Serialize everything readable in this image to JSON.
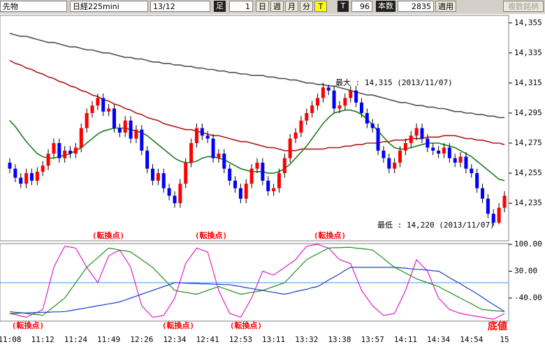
{
  "toolbar": {
    "market": "先物",
    "symbol": "日経225mini",
    "contract": "13/12",
    "bar_label": "足",
    "bar_size": "1",
    "day": "日",
    "week": "週",
    "month": "月",
    "minute": "分",
    "tick": "T",
    "tick2": "T",
    "tick_count": "96",
    "count_label": "本数",
    "count": "2835",
    "apply": "適用",
    "multi": "複数銘柄"
  },
  "chart_data": [
    {
      "type": "candlestick",
      "up_color": "#ff0000",
      "down_color": "#0000ff",
      "ylim": [
        14210,
        14360
      ],
      "yticks": [
        {
          "value": 14235,
          "label": "14,235"
        },
        {
          "value": 14255,
          "label": "14,255"
        },
        {
          "value": 14275,
          "label": "14,275"
        },
        {
          "value": 14295,
          "label": "14,295"
        },
        {
          "value": 14315,
          "label": "14,315"
        },
        {
          "value": 14335,
          "label": "14,335"
        },
        {
          "value": 14355,
          "label": "14,355"
        }
      ],
      "categories": [
        "11:08",
        null,
        null,
        null,
        null,
        null,
        "11:12",
        null,
        null,
        null,
        null,
        null,
        "11:24",
        null,
        null,
        null,
        null,
        null,
        "11:49",
        null,
        null,
        null,
        null,
        null,
        "12:26",
        null,
        null,
        null,
        null,
        null,
        "12:34",
        null,
        null,
        null,
        null,
        null,
        "12:41",
        null,
        null,
        null,
        null,
        null,
        "12:53",
        null,
        null,
        null,
        null,
        null,
        "13:11",
        null,
        null,
        null,
        null,
        null,
        "13:32",
        null,
        null,
        null,
        null,
        null,
        "13:38",
        null,
        null,
        null,
        null,
        null,
        "13:57",
        null,
        null,
        null,
        null,
        null,
        "14:11",
        null,
        null,
        null,
        null,
        null,
        "14:34",
        null,
        null,
        null,
        null,
        null,
        "14:54",
        null,
        null,
        null,
        null,
        null,
        "15"
      ],
      "open": [
        14262,
        14258,
        14252,
        14248,
        14255,
        14250,
        14256,
        14260,
        14268,
        14275,
        14265,
        14270,
        14268,
        14272,
        14285,
        14295,
        14300,
        14305,
        14296,
        14298,
        14285,
        14282,
        14290,
        14278,
        14284,
        14270,
        14258,
        14250,
        14255,
        14245,
        14240,
        14235,
        14248,
        14262,
        14275,
        14285,
        14280,
        14278,
        14265,
        14268,
        14258,
        14250,
        14245,
        14238,
        14248,
        14258,
        14262,
        14250,
        14243,
        14245,
        14255,
        14265,
        14278,
        14282,
        14290,
        14295,
        14300,
        14305,
        14312,
        14310,
        14298,
        14300,
        14305,
        14310,
        14302,
        14295,
        14288,
        14285,
        14270,
        14265,
        14258,
        14262,
        14270,
        14275,
        14280,
        14285,
        14278,
        14272,
        14270,
        14268,
        14272,
        14265,
        14262,
        14266,
        14258,
        14255,
        14245,
        14238,
        14228,
        14222,
        14232
      ],
      "high": [
        14265,
        14261,
        14255,
        14258,
        14258,
        14259,
        14263,
        14271,
        14278,
        14278,
        14273,
        14273,
        14275,
        14288,
        14298,
        14303,
        14308,
        14308,
        14301,
        14301,
        14288,
        14293,
        14293,
        14287,
        14287,
        14273,
        14261,
        14258,
        14258,
        14248,
        14243,
        14251,
        14265,
        14278,
        14288,
        14288,
        14283,
        14281,
        14271,
        14271,
        14261,
        14253,
        14248,
        14251,
        14261,
        14265,
        14265,
        14253,
        14248,
        14258,
        14268,
        14281,
        14285,
        14293,
        14298,
        14303,
        14308,
        14315,
        14314,
        14313,
        14303,
        14308,
        14313,
        14313,
        14305,
        14298,
        14291,
        14288,
        14273,
        14268,
        14265,
        14273,
        14278,
        14283,
        14288,
        14288,
        14281,
        14275,
        14273,
        14275,
        14275,
        14268,
        14269,
        14269,
        14261,
        14258,
        14248,
        14241,
        14231,
        14235,
        14243
      ],
      "low": [
        14255,
        14249,
        14245,
        14245,
        14247,
        14247,
        14253,
        14257,
        14265,
        14262,
        14262,
        14265,
        14265,
        14269,
        14282,
        14292,
        14297,
        14293,
        14293,
        14282,
        14279,
        14279,
        14275,
        14275,
        14267,
        14255,
        14247,
        14247,
        14242,
        14237,
        14232,
        14232,
        14245,
        14259,
        14272,
        14277,
        14275,
        14262,
        14262,
        14255,
        14247,
        14242,
        14235,
        14235,
        14245,
        14255,
        14247,
        14240,
        14240,
        14242,
        14252,
        14262,
        14275,
        14279,
        14287,
        14292,
        14297,
        14302,
        14307,
        14295,
        14295,
        14297,
        14302,
        14299,
        14292,
        14285,
        14282,
        14267,
        14262,
        14255,
        14255,
        14259,
        14267,
        14272,
        14277,
        14275,
        14269,
        14267,
        14265,
        14265,
        14262,
        14259,
        14259,
        14255,
        14252,
        14242,
        14235,
        14225,
        14220,
        14221,
        14229
      ],
      "close": [
        14258,
        14252,
        14248,
        14255,
        14250,
        14256,
        14260,
        14268,
        14275,
        14265,
        14270,
        14268,
        14272,
        14285,
        14295,
        14300,
        14305,
        14296,
        14298,
        14285,
        14282,
        14290,
        14278,
        14284,
        14270,
        14258,
        14250,
        14255,
        14245,
        14240,
        14235,
        14248,
        14262,
        14275,
        14285,
        14280,
        14278,
        14265,
        14268,
        14258,
        14250,
        14245,
        14238,
        14248,
        14258,
        14262,
        14250,
        14243,
        14245,
        14255,
        14265,
        14278,
        14282,
        14290,
        14295,
        14300,
        14305,
        14312,
        14310,
        14298,
        14300,
        14305,
        14310,
        14302,
        14295,
        14288,
        14285,
        14270,
        14265,
        14258,
        14262,
        14270,
        14275,
        14280,
        14285,
        14278,
        14272,
        14270,
        14268,
        14272,
        14265,
        14262,
        14266,
        14258,
        14255,
        14245,
        14238,
        14228,
        14222,
        14232,
        14240
      ],
      "series": [
        {
          "color": "#505050",
          "values": [
            14348,
            14347,
            14346,
            14346,
            14345,
            14344,
            14343,
            14342,
            14342,
            14341,
            14340,
            14339,
            14339,
            14338,
            14337,
            14337,
            14336,
            14335,
            14335,
            14334,
            14333,
            14332,
            14332,
            14331,
            14331,
            14330,
            14329,
            14329,
            14328,
            14328,
            14327,
            14327,
            14326,
            14326,
            14325,
            14325,
            14324,
            14324,
            14323,
            14323,
            14322,
            14322,
            14321,
            14321,
            14320,
            14320,
            14320,
            14319,
            14319,
            14318,
            14318,
            14317,
            14317,
            14316,
            14315,
            14315,
            14314,
            14314,
            14313,
            14313,
            14312,
            14311,
            14310,
            14309,
            14308,
            14307,
            14307,
            14306,
            14305,
            14304,
            14303,
            14302,
            14302,
            14301,
            14300,
            14300,
            14299,
            14299,
            14298,
            14298,
            14297,
            14296,
            14296,
            14295,
            14295,
            14294,
            14294,
            14293,
            14293,
            14292,
            14292
          ]
        },
        {
          "color": "#b01818",
          "values": [
            14330,
            14328,
            14327,
            14325,
            14324,
            14322,
            14321,
            14319,
            14318,
            14316,
            14315,
            14313,
            14312,
            14310,
            14309,
            14307,
            14306,
            14304,
            14303,
            14301,
            14300,
            14298,
            14297,
            14295,
            14294,
            14292,
            14291,
            14290,
            14288,
            14287,
            14286,
            14285,
            14284,
            14284,
            14283,
            14282,
            14281,
            14280,
            14280,
            14279,
            14278,
            14277,
            14276,
            14276,
            14275,
            14274,
            14273,
            14272,
            14272,
            14271,
            14270,
            14270,
            14270,
            14271,
            14271,
            14271,
            14271,
            14271,
            14272,
            14272,
            14272,
            14273,
            14273,
            14274,
            14274,
            14275,
            14275,
            14275,
            14276,
            14276,
            14277,
            14277,
            14277,
            14278,
            14278,
            14278,
            14279,
            14279,
            14279,
            14280,
            14280,
            14280,
            14279,
            14278,
            14278,
            14277,
            14277,
            14276,
            14275,
            14275,
            14274
          ]
        },
        {
          "color": "#1e7a1e",
          "values": [
            14290,
            14286,
            14281,
            14276,
            14272,
            14268,
            14266,
            14265,
            14265,
            14266,
            14267,
            14268,
            14270,
            14272,
            14275,
            14278,
            14281,
            14283,
            14284,
            14285,
            14285,
            14285,
            14284,
            14283,
            14282,
            14280,
            14277,
            14274,
            14271,
            14268,
            14265,
            14263,
            14262,
            14262,
            14263,
            14265,
            14266,
            14266,
            14265,
            14264,
            14262,
            14260,
            14258,
            14257,
            14256,
            14256,
            14256,
            14255,
            14255,
            14256,
            14258,
            14261,
            14265,
            14269,
            14273,
            14278,
            14283,
            14288,
            14292,
            14295,
            14296,
            14297,
            14297,
            14296,
            14294,
            14291,
            14287,
            14283,
            14279,
            14275,
            14272,
            14271,
            14271,
            14272,
            14273,
            14274,
            14275,
            14275,
            14275,
            14274,
            14273,
            14272,
            14270,
            14268,
            14266,
            14263,
            14260,
            14257,
            14254,
            14251,
            14250
          ]
        }
      ],
      "annotations": [
        "最大 : 14,315 (2013/11/07)",
        "最低 : 14,220 (2013/11/07)",
        "(転換点)",
        "(転換点)",
        "(転換点)"
      ]
    },
    {
      "type": "line",
      "ylim": [
        -100,
        100
      ],
      "hline": 0,
      "yticks": [
        {
          "value": -40,
          "label": "-40.00"
        },
        {
          "value": 30,
          "label": "30.00"
        },
        {
          "value": 100,
          "label": "100.00"
        }
      ],
      "series": [
        {
          "color": "#e020c8",
          "values": [
            -80,
            -83,
            -87,
            -90,
            -83,
            -77,
            -70,
            -15,
            40,
            68,
            95,
            93,
            90,
            65,
            40,
            20,
            0,
            35,
            70,
            78,
            85,
            63,
            40,
            -10,
            -60,
            -75,
            -90,
            -88,
            -85,
            -63,
            -40,
            5,
            50,
            70,
            90,
            85,
            80,
            30,
            -20,
            -50,
            -80,
            -85,
            -90,
            -65,
            -40,
            -5,
            30,
            25,
            20,
            30,
            40,
            50,
            60,
            78,
            95,
            98,
            100,
            95,
            90,
            75,
            60,
            55,
            50,
            15,
            -20,
            -40,
            -60,
            -73,
            -85,
            -83,
            -80,
            -50,
            -20,
            20,
            60,
            45,
            30,
            -5,
            -40,
            -55,
            -70,
            -75,
            -80,
            -83,
            -85,
            -88,
            -90,
            -93,
            -95,
            -88,
            -80
          ]
        },
        {
          "color": "#1f8f1f",
          "values": [
            -75,
            -77,
            -78,
            -80,
            -82,
            -83,
            -85,
            -74,
            -63,
            -51,
            -40,
            -20,
            0,
            20,
            40,
            53,
            65,
            78,
            90,
            88,
            85,
            83,
            80,
            70,
            60,
            50,
            40,
            25,
            10,
            -5,
            -20,
            -23,
            -25,
            -28,
            -30,
            -25,
            -20,
            -15,
            -10,
            -15,
            -20,
            -25,
            -30,
            -28,
            -25,
            -23,
            -20,
            -15,
            -10,
            -5,
            0,
            15,
            30,
            45,
            60,
            68,
            75,
            83,
            90,
            91,
            91,
            92,
            92,
            90,
            89,
            87,
            85,
            74,
            63,
            51,
            40,
            33,
            25,
            18,
            10,
            5,
            0,
            -5,
            -10,
            -18,
            -25,
            -33,
            -40,
            -48,
            -55,
            -63,
            -70,
            -71,
            -73,
            -74,
            -75
          ]
        },
        {
          "color": "#1a3fd0",
          "values": [
            -80,
            -80,
            -79,
            -79,
            -78,
            -78,
            -77,
            -77,
            -76,
            -76,
            -75,
            -73,
            -70,
            -68,
            -65,
            -63,
            -60,
            -58,
            -55,
            -53,
            -50,
            -45,
            -40,
            -35,
            -30,
            -25,
            -20,
            -15,
            -10,
            -5,
            0,
            0,
            -1,
            -2,
            -2,
            -3,
            -3,
            -4,
            -4,
            -5,
            -5,
            -8,
            -10,
            -13,
            -15,
            -18,
            -20,
            -23,
            -25,
            -28,
            -30,
            -27,
            -23,
            -20,
            -17,
            -13,
            -10,
            -2,
            7,
            15,
            23,
            32,
            40,
            40,
            40,
            40,
            40,
            40,
            40,
            40,
            40,
            39,
            38,
            36,
            35,
            34,
            33,
            31,
            30,
            22,
            13,
            5,
            -3,
            -12,
            -20,
            -29,
            -38,
            -48,
            -57,
            -66,
            -75
          ]
        }
      ],
      "annotations": [
        "(転換点)",
        "(転換点)",
        "(転換点)",
        "底値"
      ]
    }
  ]
}
